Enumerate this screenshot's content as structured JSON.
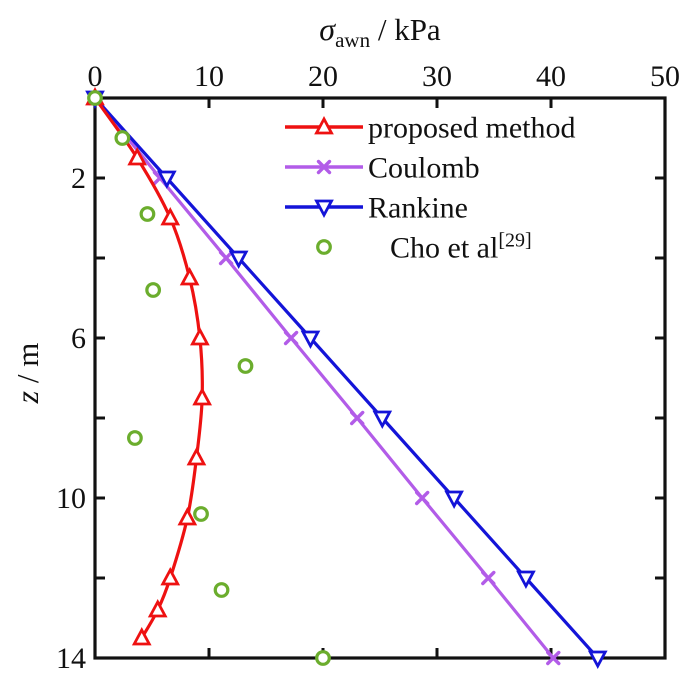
{
  "figure": {
    "background": "#ffffff",
    "axis_color": "#111111",
    "text_color": "#111111"
  },
  "chart_data": {
    "type": "line",
    "title": "",
    "xlabel": {
      "symbol": "σ",
      "subscript": "awn",
      "rest": " / kPa"
    },
    "ylabel": {
      "symbol": "z",
      "rest": " / m"
    },
    "x_axis": {
      "min": 0,
      "max": 50,
      "tick_labels": [
        0,
        10,
        20,
        30,
        40,
        50
      ],
      "tick_marks": [
        10,
        20,
        30,
        40
      ],
      "position": "top",
      "grid": false
    },
    "y_axis": {
      "min": 0,
      "max": 14,
      "tick_labels": [
        2,
        6,
        10,
        14
      ],
      "tick_marks": [
        2,
        4,
        6,
        8,
        10,
        12
      ],
      "position": "left",
      "direction": "down",
      "grid": false
    },
    "series": [
      {
        "name": "coulomb",
        "label": "Coulomb",
        "color": "#B25CE8",
        "marker": "x",
        "line": true,
        "smooth": false,
        "points": [
          [
            0,
            0
          ],
          [
            5.7,
            2
          ],
          [
            11.5,
            4
          ],
          [
            17.2,
            6
          ],
          [
            23.0,
            8
          ],
          [
            28.7,
            10
          ],
          [
            34.5,
            12
          ],
          [
            40.2,
            14
          ]
        ]
      },
      {
        "name": "rankine",
        "label": "Rankine",
        "color": "#1414D8",
        "marker": "triangle-down",
        "line": true,
        "smooth": false,
        "points": [
          [
            0,
            0
          ],
          [
            6.3,
            2
          ],
          [
            12.6,
            4
          ],
          [
            18.9,
            6
          ],
          [
            25.2,
            8
          ],
          [
            31.5,
            10
          ],
          [
            37.8,
            12
          ],
          [
            44.1,
            14
          ]
        ]
      },
      {
        "name": "proposed-method",
        "label": "proposed method",
        "color": "#EE1111",
        "marker": "triangle-up",
        "line": true,
        "smooth": true,
        "points": [
          [
            0,
            0
          ],
          [
            3.7,
            1.5
          ],
          [
            6.6,
            3
          ],
          [
            8.3,
            4.5
          ],
          [
            9.2,
            6
          ],
          [
            9.4,
            7.5
          ],
          [
            8.9,
            9
          ],
          [
            8.1,
            10.5
          ],
          [
            6.6,
            12
          ],
          [
            5.5,
            12.8
          ],
          [
            4.1,
            13.5
          ]
        ]
      },
      {
        "name": "cho-et-al",
        "label": "Cho et al",
        "label_superscript": "[29]",
        "color": "#6BAD2D",
        "marker": "circle",
        "line": false,
        "smooth": false,
        "points": [
          [
            0,
            0
          ],
          [
            2.4,
            1.0
          ],
          [
            4.6,
            2.9
          ],
          [
            5.1,
            4.8
          ],
          [
            13.2,
            6.7
          ],
          [
            3.5,
            8.5
          ],
          [
            9.3,
            10.4
          ],
          [
            11.1,
            12.3
          ],
          [
            20.0,
            14.0
          ]
        ]
      }
    ],
    "legend": {
      "position": "upper-right",
      "border": false,
      "order": [
        "proposed-method",
        "coulomb",
        "rankine",
        "cho-et-al"
      ]
    }
  }
}
